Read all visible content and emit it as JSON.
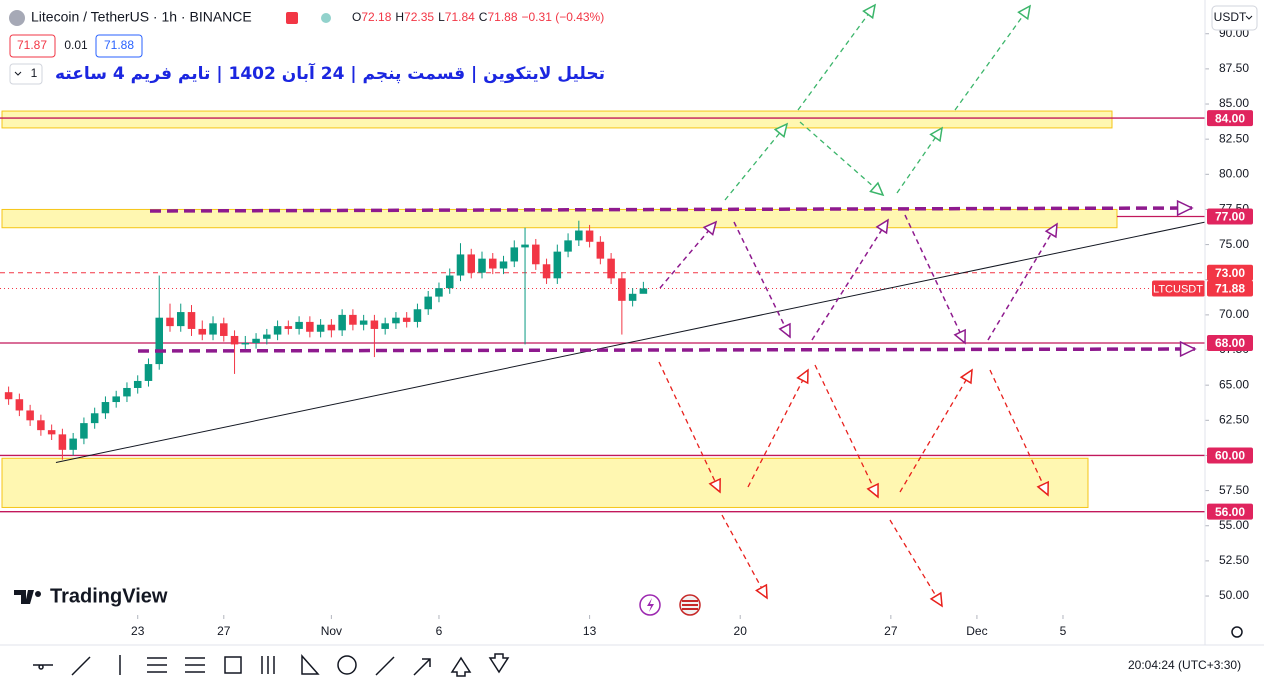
{
  "header": {
    "symbol": "Litecoin / TetherUS · 1h · BINANCE",
    "o_label": "O",
    "open": 72.18,
    "h_label": "H",
    "high": 72.35,
    "l_label": "L",
    "low": 71.84,
    "c_label": "C",
    "close": 71.88,
    "change": "−0.31 (−0.43%)",
    "bid": 71.87,
    "spread": 0.01,
    "ask": 71.88,
    "interval_count": "1",
    "currency": "USDT"
  },
  "title": "تحلیل لایتکوین | قسمت پنجم | 24 آبان 1402 | تایم فریم 4 ساعته",
  "logo": "TradingView",
  "clock": "20:04:24 (UTC+3:30)",
  "chart_data": {
    "type": "candlestick",
    "x": [
      17,
      17.5,
      18,
      18.5,
      19,
      19.5,
      20,
      20.5,
      21,
      21.5,
      22,
      22.5,
      23,
      23.5,
      24,
      24.5,
      25,
      25.5,
      26,
      26.5,
      27,
      27.5,
      28,
      28.5,
      29,
      29.5,
      30,
      30.5,
      31,
      31.5,
      32,
      32.5,
      33,
      33.5,
      34,
      34.5,
      35,
      35.5,
      36,
      36.5,
      37,
      37.5,
      38,
      38.5,
      39,
      39.5,
      40,
      40.5,
      41,
      41.5,
      42,
      42.5,
      43,
      43.5,
      44,
      44.5,
      45,
      45.5,
      46,
      46.5
    ],
    "open": [
      64.5,
      64.0,
      63.2,
      62.5,
      61.8,
      61.5,
      60.4,
      61.2,
      62.3,
      63.0,
      63.8,
      64.2,
      64.8,
      65.3,
      66.5,
      69.8,
      69.2,
      70.2,
      69.0,
      68.6,
      69.4,
      68.5,
      67.9,
      68.0,
      68.3,
      68.6,
      69.2,
      69.0,
      69.5,
      68.8,
      69.3,
      68.9,
      70.0,
      69.3,
      69.6,
      69.0,
      69.4,
      69.8,
      69.5,
      70.4,
      71.3,
      71.9,
      72.8,
      74.3,
      73.0,
      74.0,
      73.3,
      73.8,
      74.8,
      75.0,
      73.6,
      72.6,
      74.5,
      75.3,
      76.0,
      75.2,
      74.0,
      72.6,
      71.0,
      71.5
    ],
    "high": [
      64.9,
      64.4,
      63.6,
      62.9,
      62.2,
      61.9,
      61.6,
      62.7,
      63.4,
      64.2,
      64.6,
      65.2,
      65.7,
      66.9,
      72.8,
      70.8,
      70.8,
      70.7,
      69.6,
      69.9,
      69.8,
      68.9,
      68.5,
      68.7,
      69.0,
      69.6,
      69.6,
      69.9,
      69.9,
      69.7,
      69.7,
      70.4,
      70.4,
      70.0,
      70.0,
      69.8,
      70.2,
      70.2,
      70.8,
      71.7,
      72.3,
      73.3,
      75.1,
      74.7,
      74.5,
      74.4,
      74.2,
      75.3,
      76.2,
      75.4,
      74.0,
      75.0,
      75.8,
      76.7,
      76.4,
      75.6,
      74.4,
      73.0,
      71.9,
      72.35
    ],
    "low": [
      63.6,
      62.8,
      62.1,
      61.4,
      61.1,
      59.7,
      60.0,
      60.8,
      61.9,
      62.6,
      63.4,
      63.8,
      64.4,
      64.9,
      66.1,
      68.8,
      68.8,
      68.5,
      68.2,
      68.2,
      68.1,
      65.8,
      67.5,
      67.6,
      67.9,
      68.2,
      68.6,
      68.6,
      68.4,
      68.4,
      68.4,
      68.5,
      68.9,
      68.9,
      67.0,
      68.6,
      69.0,
      69.1,
      69.1,
      70.0,
      70.9,
      71.5,
      72.4,
      72.6,
      72.6,
      72.9,
      72.9,
      73.4,
      67.9,
      73.2,
      72.2,
      72.2,
      74.1,
      74.9,
      74.8,
      73.6,
      72.2,
      68.6,
      70.6,
      71.84
    ],
    "close": [
      64.0,
      63.2,
      62.5,
      61.8,
      61.5,
      60.4,
      61.2,
      62.3,
      63.0,
      63.8,
      64.2,
      64.8,
      65.3,
      66.5,
      69.8,
      69.2,
      70.2,
      69.0,
      68.6,
      69.4,
      68.5,
      67.9,
      68.0,
      68.3,
      68.6,
      69.2,
      69.0,
      69.5,
      68.8,
      69.3,
      68.9,
      70.0,
      69.3,
      69.6,
      69.0,
      69.4,
      69.8,
      69.5,
      70.4,
      71.3,
      71.9,
      72.8,
      74.3,
      73.0,
      74.0,
      73.3,
      73.8,
      74.8,
      75.0,
      73.6,
      72.6,
      74.5,
      75.3,
      76.0,
      75.2,
      74.0,
      72.6,
      71.0,
      71.5,
      71.88
    ],
    "up_color": "#089981",
    "down_color": "#f23645",
    "xlim": [
      16.6,
      72.6
    ],
    "ylim": [
      48.65,
      92.4
    ],
    "xticks": [
      {
        "value": 23,
        "label": "23"
      },
      {
        "value": 27,
        "label": "27"
      },
      {
        "value": 32,
        "label": "Nov"
      },
      {
        "value": 37,
        "label": "6"
      },
      {
        "value": 44,
        "label": "13"
      },
      {
        "value": 51,
        "label": "20"
      },
      {
        "value": 58,
        "label": "27"
      },
      {
        "value": 62,
        "label": "Dec"
      },
      {
        "value": 66,
        "label": "5"
      }
    ],
    "yticks": [
      {
        "value": 50,
        "label": "50.00"
      },
      {
        "value": 52.5,
        "label": "52.50"
      },
      {
        "value": 55,
        "label": "55.00"
      },
      {
        "value": 57.5,
        "label": "57.50"
      },
      {
        "value": 60,
        "label": "60.00"
      },
      {
        "value": 62.5,
        "label": "62.50"
      },
      {
        "value": 65,
        "label": "65.00"
      },
      {
        "value": 67.5,
        "label": "67.50"
      },
      {
        "value": 70,
        "label": "70.00"
      },
      {
        "value": 72.5,
        "label": "72.50"
      },
      {
        "value": 75,
        "label": "75.00"
      },
      {
        "value": 77.5,
        "label": "77.50"
      },
      {
        "value": 80,
        "label": "80.00"
      },
      {
        "value": 82.5,
        "label": "82.50"
      },
      {
        "value": 85,
        "label": "85.00"
      },
      {
        "value": 87.5,
        "label": "87.50"
      },
      {
        "value": 90,
        "label": "90.00"
      }
    ],
    "grid": false,
    "zones": [
      {
        "low": 83.3,
        "high": 84.5
      },
      {
        "low": 76.2,
        "high": 77.5
      },
      {
        "low": 56.3,
        "high": 59.8
      }
    ],
    "trend_line": {
      "x": [
        19.2,
        72.6
      ],
      "y": [
        59.5,
        76.6
      ],
      "color": "#131722"
    },
    "levels": [
      {
        "value": 84,
        "label": "84.00",
        "style": "solid",
        "color": "#c2185b"
      },
      {
        "value": 77,
        "label": "77.00",
        "style": "solid",
        "color": "#c2185b"
      },
      {
        "value": 73,
        "label": "73.00",
        "style": "dashed",
        "color": "#f23645"
      },
      {
        "value": 71.88,
        "label": "71.88",
        "name": "LTCUSDT",
        "style": "dotted",
        "color": "#f23645"
      },
      {
        "value": 68,
        "label": "68.00",
        "style": "solid",
        "color": "#c2185b"
      },
      {
        "value": 60,
        "label": "60.00",
        "style": "solid",
        "color": "#c2185b"
      },
      {
        "value": 56,
        "label": "56.00",
        "style": "solid",
        "color": "#c2185b"
      }
    ]
  }
}
